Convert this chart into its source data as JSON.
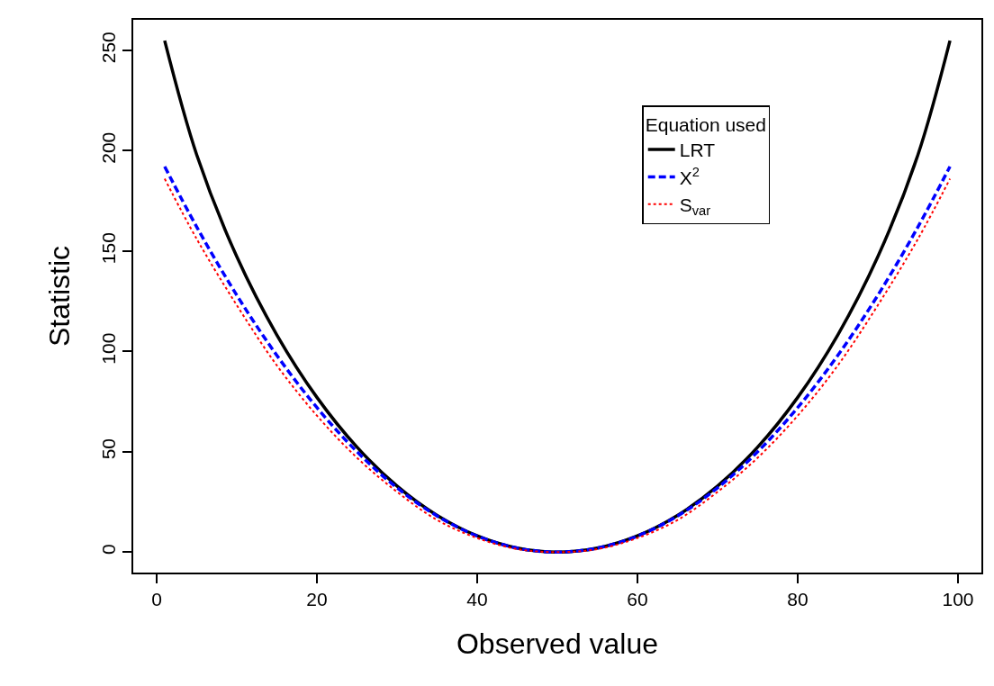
{
  "chart_data": {
    "type": "line",
    "xlabel": "Observed value",
    "ylabel": "Statistic",
    "legend_title": "Equation used",
    "legend": "top right",
    "grid": false,
    "x": [
      1,
      5,
      10,
      15,
      20,
      25,
      30,
      35,
      40,
      45,
      50,
      55,
      60,
      65,
      70,
      75,
      80,
      85,
      90,
      95,
      99
    ],
    "series": [
      {
        "name": "LRT",
        "color": "#000000",
        "line_style": "solid",
        "values": [
          254.8,
          197.9,
          147.2,
          108.2,
          77.1,
          52.3,
          32.9,
          18.3,
          8.1,
          2.0,
          0,
          2.0,
          8.1,
          18.3,
          32.9,
          52.3,
          77.1,
          108.2,
          147.2,
          197.9,
          254.8
        ]
      },
      {
        "name": "X$^{2}$",
        "color": "#0000ff",
        "line_style": "dashed",
        "values": [
          192.1,
          162,
          128,
          98,
          72,
          50,
          32,
          18,
          8,
          2,
          0,
          2,
          8,
          18,
          32,
          50,
          72,
          98,
          128,
          162,
          192.1
        ]
      },
      {
        "name": "S$_{var}$",
        "color": "#ff0000",
        "line_style": "dotted",
        "values": [
          186,
          156,
          123,
          93,
          68,
          47,
          30,
          16,
          7,
          1.5,
          0,
          1.5,
          7,
          16,
          30,
          47,
          68,
          93,
          123,
          156,
          186
        ]
      }
    ],
    "xlim": [
      -2.92,
      102.92
    ],
    "ylim": [
      -10.2,
      265.2
    ],
    "xticks": [
      0,
      20,
      40,
      60,
      80,
      100
    ],
    "yticks": [
      0,
      50,
      100,
      150,
      200,
      250
    ]
  }
}
